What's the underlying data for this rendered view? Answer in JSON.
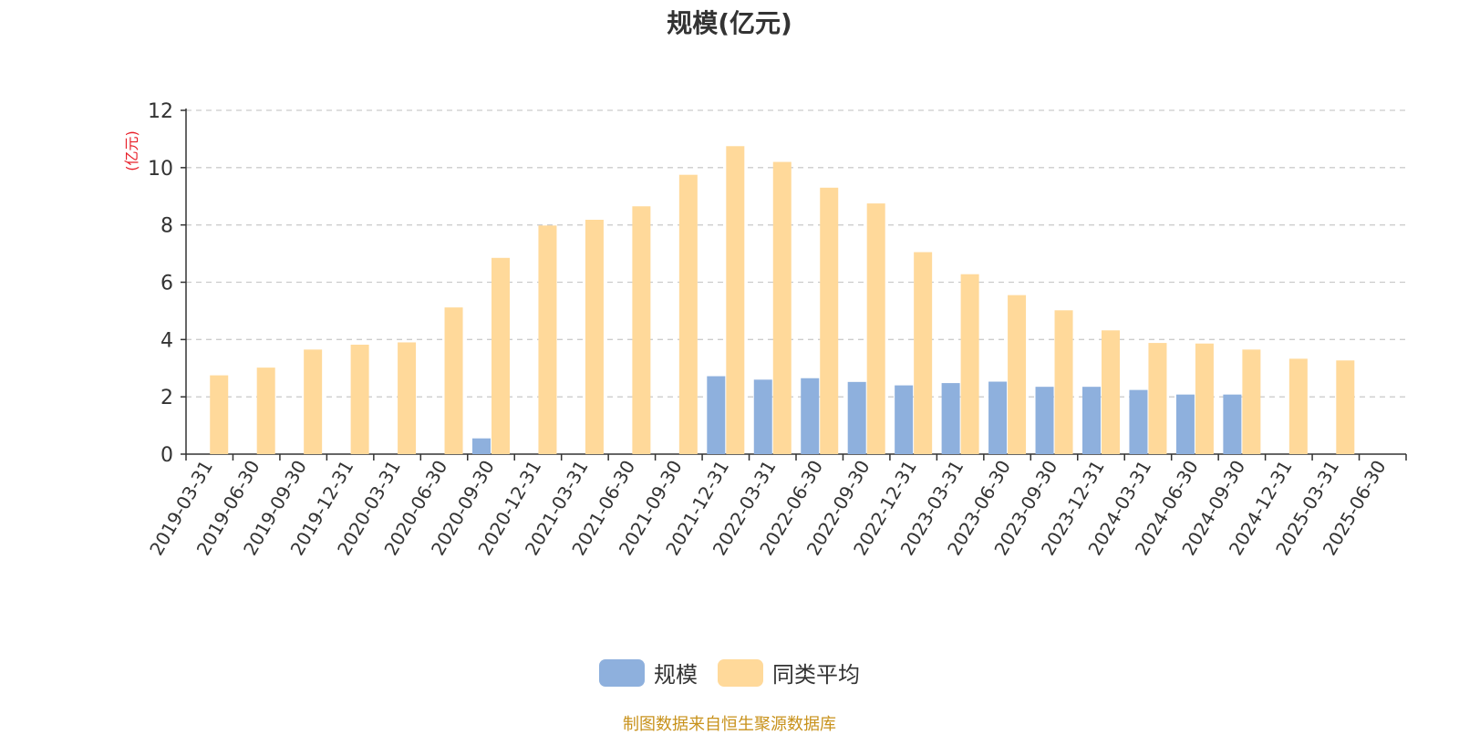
{
  "chart_data": {
    "type": "bar",
    "title": "规模(亿元)",
    "ylabel": "(亿元)",
    "xlabel": "",
    "ylim": [
      0,
      12
    ],
    "yticks": [
      0,
      2,
      4,
      6,
      8,
      10,
      12
    ],
    "grid": true,
    "legend_position": "bottom-center",
    "categories": [
      "2019-03-31",
      "2019-06-30",
      "2019-09-30",
      "2019-12-31",
      "2020-03-31",
      "2020-06-30",
      "2020-09-30",
      "2020-12-31",
      "2021-03-31",
      "2021-06-30",
      "2021-09-30",
      "2021-12-31",
      "2022-03-31",
      "2022-06-30",
      "2022-09-30",
      "2022-12-31",
      "2023-03-31",
      "2023-06-30",
      "2023-09-30",
      "2023-12-31",
      "2024-03-31",
      "2024-06-30",
      "2024-09-30",
      "2024-12-31",
      "2025-03-31",
      "2025-06-30"
    ],
    "series": [
      {
        "name": "规模",
        "color": "#8eb0dd",
        "values": [
          null,
          null,
          null,
          null,
          null,
          null,
          0.55,
          null,
          null,
          null,
          null,
          2.72,
          2.6,
          2.65,
          2.52,
          2.4,
          2.48,
          2.53,
          2.35,
          2.35,
          2.24,
          2.08,
          2.08,
          null,
          null,
          null
        ]
      },
      {
        "name": "同类平均",
        "color": "#ffd99a",
        "values": [
          2.75,
          3.02,
          3.65,
          3.82,
          3.9,
          5.12,
          6.85,
          7.98,
          8.18,
          8.65,
          9.75,
          10.75,
          10.2,
          9.3,
          8.75,
          7.05,
          6.28,
          5.55,
          5.02,
          4.32,
          3.88,
          3.86,
          3.65,
          3.33,
          3.27,
          null
        ]
      }
    ]
  },
  "source_text": "制图数据来自恒生聚源数据库"
}
